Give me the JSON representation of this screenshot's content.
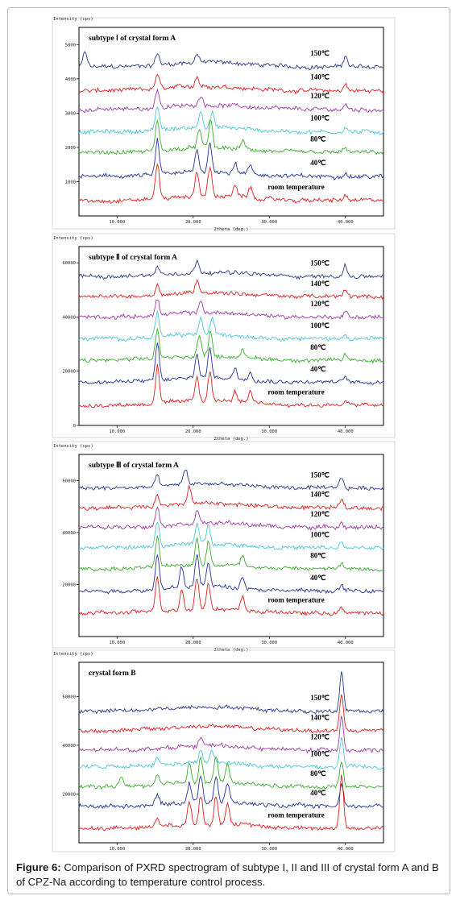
{
  "figure": {
    "caption_label": "Figure 6:",
    "caption_text": " Comparison of PXRD spectrogram of subtype I, II and III of crystal form A and B of CPZ-Na according to temperature control process."
  },
  "axis_text": {
    "ylabel": "Intensity (cps)",
    "xlabel": "2theta (deg.)"
  },
  "temperatures": [
    "150℃",
    "140℃",
    "120℃",
    "100℃",
    "80℃",
    "40℃",
    "room temperature"
  ],
  "colors": {
    "150℃": "#2b3a8f",
    "140℃": "#e01e1e",
    "120℃": "#a13aa8",
    "100℃": "#4cc7d6",
    "80℃": "#3aae2e",
    "40℃": "#25349a",
    "room temperature": "#e01e1e"
  },
  "chart_data": [
    {
      "type": "line",
      "title": "subtype Ⅰ of crystal form A",
      "xlabel": "2theta (deg.)",
      "ylabel": "Intensity (cps)",
      "xlim": [
        5,
        45
      ],
      "ylim": [
        0,
        5500
      ],
      "x_ticks": [
        "10.000",
        "20.000",
        "30.000",
        "40.000"
      ],
      "y_ticks": [
        "1000",
        "2000",
        "3000",
        "4000",
        "5000"
      ],
      "series": [
        {
          "name": "150℃",
          "baseline": 4350,
          "peaks": [
            [
              5.8,
              450
            ],
            [
              15.3,
              350
            ],
            [
              20.5,
              250
            ],
            [
              40.0,
              350
            ]
          ]
        },
        {
          "name": "140℃",
          "baseline": 3650,
          "peaks": [
            [
              15.3,
              450
            ],
            [
              20.5,
              300
            ],
            [
              40.0,
              200
            ]
          ]
        },
        {
          "name": "120℃",
          "baseline": 3100,
          "peaks": [
            [
              15.3,
              550
            ],
            [
              21.0,
              300
            ],
            [
              40.0,
              150
            ]
          ]
        },
        {
          "name": "100℃",
          "baseline": 2450,
          "peaks": [
            [
              15.3,
              700
            ],
            [
              21.0,
              500
            ],
            [
              22.5,
              450
            ],
            [
              40.0,
              150
            ]
          ]
        },
        {
          "name": "80℃",
          "baseline": 1850,
          "peaks": [
            [
              15.3,
              900
            ],
            [
              20.8,
              550
            ],
            [
              22.3,
              800
            ],
            [
              26.5,
              250
            ],
            [
              40.0,
              150
            ]
          ]
        },
        {
          "name": "40℃",
          "baseline": 1150,
          "peaks": [
            [
              15.3,
              1000
            ],
            [
              20.5,
              650
            ],
            [
              22.2,
              900
            ],
            [
              25.5,
              300
            ],
            [
              27.5,
              250
            ],
            [
              40.0,
              150
            ]
          ]
        },
        {
          "name": "room temperature",
          "baseline": 450,
          "peaks": [
            [
              15.3,
              1050
            ],
            [
              20.5,
              700
            ],
            [
              22.2,
              850
            ],
            [
              25.5,
              350
            ],
            [
              27.5,
              300
            ],
            [
              40.0,
              150
            ]
          ]
        }
      ]
    },
    {
      "type": "line",
      "title": "subtype Ⅱ of crystal form A",
      "xlabel": "2theta (deg.)",
      "ylabel": "Intensity (cps)",
      "xlim": [
        5,
        45
      ],
      "ylim": [
        0,
        66000
      ],
      "x_ticks": [
        "10.000",
        "20.000",
        "30.000",
        "40.000"
      ],
      "y_ticks": [
        "0",
        "20000",
        "40000",
        "60000"
      ],
      "series": [
        {
          "name": "150℃",
          "baseline": 55000,
          "peaks": [
            [
              15.3,
              3000
            ],
            [
              20.5,
              4000
            ],
            [
              40.0,
              4000
            ]
          ]
        },
        {
          "name": "140℃",
          "baseline": 47500,
          "peaks": [
            [
              15.3,
              4000
            ],
            [
              20.5,
              4500
            ],
            [
              40.0,
              3000
            ]
          ]
        },
        {
          "name": "120℃",
          "baseline": 40000,
          "peaks": [
            [
              15.3,
              6000
            ],
            [
              21.0,
              4000
            ],
            [
              40.0,
              2000
            ]
          ]
        },
        {
          "name": "100℃",
          "baseline": 32000,
          "peaks": [
            [
              15.3,
              9000
            ],
            [
              21.0,
              6000
            ],
            [
              22.5,
              6000
            ],
            [
              40.0,
              2000
            ]
          ]
        },
        {
          "name": "80℃",
          "baseline": 24000,
          "peaks": [
            [
              15.3,
              11000
            ],
            [
              20.8,
              8000
            ],
            [
              22.3,
              9000
            ],
            [
              26.5,
              3000
            ],
            [
              40.0,
              2000
            ]
          ]
        },
        {
          "name": "40℃",
          "baseline": 16000,
          "peaks": [
            [
              15.3,
              14000
            ],
            [
              20.5,
              9000
            ],
            [
              22.2,
              11000
            ],
            [
              25.5,
              4000
            ],
            [
              27.5,
              3500
            ],
            [
              40.0,
              2000
            ]
          ]
        },
        {
          "name": "room temperature",
          "baseline": 7500,
          "peaks": [
            [
              15.3,
              14000
            ],
            [
              20.5,
              9000
            ],
            [
              22.2,
              11000
            ],
            [
              25.5,
              4000
            ],
            [
              27.5,
              3500
            ],
            [
              40.0,
              2000
            ]
          ]
        }
      ]
    },
    {
      "type": "line",
      "title": "subtype Ⅲ of crystal form A",
      "xlabel": "2theta (deg.)",
      "ylabel": "Intensity (cps)",
      "xlim": [
        5,
        45
      ],
      "ylim": [
        0,
        70000
      ],
      "x_ticks": [
        "10.000",
        "20.000",
        "30.000",
        "40.000"
      ],
      "y_ticks": [
        "20000",
        "40000",
        "60000"
      ],
      "series": [
        {
          "name": "150℃",
          "baseline": 57000,
          "peaks": [
            [
              15.3,
              4000
            ],
            [
              19.0,
              6000
            ],
            [
              39.5,
              4000
            ]
          ]
        },
        {
          "name": "140℃",
          "baseline": 49500,
          "peaks": [
            [
              15.3,
              5000
            ],
            [
              19.5,
              6000
            ],
            [
              39.5,
              3000
            ]
          ]
        },
        {
          "name": "120℃",
          "baseline": 42000,
          "peaks": [
            [
              15.3,
              7000
            ],
            [
              20.5,
              5000
            ],
            [
              39.5,
              2000
            ]
          ]
        },
        {
          "name": "100℃",
          "baseline": 34000,
          "peaks": [
            [
              15.3,
              10000
            ],
            [
              20.5,
              8000
            ],
            [
              22.0,
              7000
            ],
            [
              39.5,
              2000
            ]
          ]
        },
        {
          "name": "80℃",
          "baseline": 26000,
          "peaks": [
            [
              15.3,
              12000
            ],
            [
              20.5,
              10000
            ],
            [
              22.0,
              9000
            ],
            [
              26.5,
              4000
            ],
            [
              39.5,
              2000
            ]
          ]
        },
        {
          "name": "40℃",
          "baseline": 17500,
          "peaks": [
            [
              15.3,
              14000
            ],
            [
              18.5,
              8000
            ],
            [
              20.5,
              12000
            ],
            [
              22.0,
              10000
            ],
            [
              26.5,
              5000
            ],
            [
              39.5,
              2000
            ]
          ]
        },
        {
          "name": "room temperature",
          "baseline": 9000,
          "peaks": [
            [
              15.3,
              14000
            ],
            [
              18.5,
              8000
            ],
            [
              20.5,
              12000
            ],
            [
              22.0,
              10000
            ],
            [
              26.5,
              5000
            ],
            [
              39.5,
              2000
            ]
          ]
        }
      ]
    },
    {
      "type": "line",
      "title": "crystal form B",
      "xlabel": "2theta (deg.)",
      "ylabel": "Intensity (cps)",
      "xlim": [
        5,
        45
      ],
      "ylim": [
        0,
        74000
      ],
      "x_ticks": [
        "10.000",
        "20.000",
        "30.000",
        "40.000"
      ],
      "y_ticks": [
        "20000",
        "40000",
        "60000"
      ],
      "series": [
        {
          "name": "150℃",
          "baseline": 54000,
          "peaks": [
            [
              39.5,
              16000
            ]
          ]
        },
        {
          "name": "140℃",
          "baseline": 46000,
          "peaks": [
            [
              39.5,
              15000
            ]
          ]
        },
        {
          "name": "120℃",
          "baseline": 38000,
          "peaks": [
            [
              21.0,
              4000
            ],
            [
              39.5,
              14000
            ]
          ]
        },
        {
          "name": "100℃",
          "baseline": 31000,
          "peaks": [
            [
              15.3,
              3000
            ],
            [
              21.0,
              5000
            ],
            [
              22.5,
              5000
            ],
            [
              39.5,
              12000
            ]
          ]
        },
        {
          "name": "80℃",
          "baseline": 23000,
          "peaks": [
            [
              10.5,
              4000
            ],
            [
              15.3,
              4000
            ],
            [
              19.5,
              8000
            ],
            [
              21.0,
              11000
            ],
            [
              23.0,
              11000
            ],
            [
              24.5,
              8000
            ],
            [
              39.5,
              10000
            ]
          ]
        },
        {
          "name": "40℃",
          "baseline": 15000,
          "peaks": [
            [
              15.3,
              4000
            ],
            [
              19.5,
              8000
            ],
            [
              21.0,
              11000
            ],
            [
              23.0,
              11000
            ],
            [
              24.5,
              8000
            ],
            [
              39.5,
              9000
            ]
          ]
        },
        {
          "name": "room temperature",
          "baseline": 6000,
          "peaks": [
            [
              15.3,
              4000
            ],
            [
              19.5,
              9000
            ],
            [
              21.0,
              12000
            ],
            [
              23.0,
              12000
            ],
            [
              24.5,
              9000
            ],
            [
              39.5,
              22000
            ]
          ]
        }
      ]
    }
  ]
}
